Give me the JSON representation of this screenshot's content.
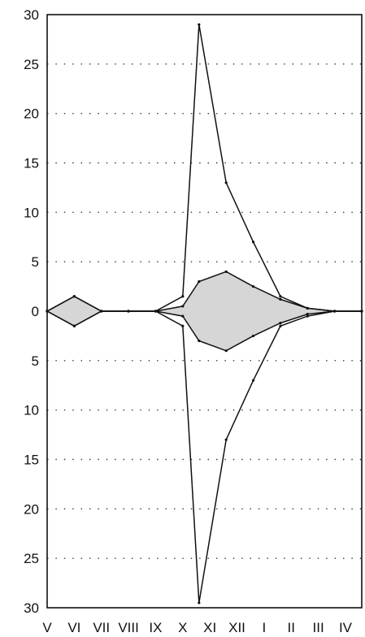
{
  "chart_data": {
    "type": "area",
    "title": "",
    "xlabel": "",
    "ylabel": "",
    "categories": [
      "V",
      "VI",
      "VII",
      "VIII",
      "IX",
      "X",
      "XI",
      "XII",
      "I",
      "II",
      "III",
      "IV"
    ],
    "ylim": [
      -30,
      30
    ],
    "y_ticks": [
      {
        "value": 30,
        "label": "30"
      },
      {
        "value": 25,
        "label": "25"
      },
      {
        "value": 20,
        "label": "20"
      },
      {
        "value": 15,
        "label": "15"
      },
      {
        "value": 10,
        "label": "10"
      },
      {
        "value": 5,
        "label": "5"
      },
      {
        "value": 0,
        "label": "0"
      },
      {
        "value": -5,
        "label": "5"
      },
      {
        "value": -10,
        "label": "10"
      },
      {
        "value": -15,
        "label": "15"
      },
      {
        "value": -20,
        "label": "20"
      },
      {
        "value": -25,
        "label": "25"
      },
      {
        "value": -30,
        "label": "30"
      }
    ],
    "grid": "horizontal-dotted",
    "x": [
      0,
      1,
      2,
      3,
      4,
      5,
      5.6,
      6.6,
      7.6,
      8.6,
      9.6,
      10.6,
      11.6
    ],
    "series": [
      {
        "role": "outer-upper",
        "values": [
          0,
          1.5,
          0,
          0,
          0,
          1.5,
          29,
          13,
          7,
          1.5,
          0.3,
          0,
          0
        ]
      },
      {
        "role": "inner-upper",
        "values": [
          0,
          1.5,
          0,
          0,
          0,
          0.5,
          3,
          4,
          2.5,
          1.2,
          0.3,
          0,
          0
        ]
      },
      {
        "role": "inner-lower",
        "values": [
          0,
          -1.5,
          0,
          0,
          0,
          -0.5,
          -3,
          -4,
          -2.5,
          -1.2,
          -0.3,
          0,
          0
        ]
      },
      {
        "role": "outer-lower",
        "values": [
          0,
          -1.5,
          0,
          0,
          0,
          -1.5,
          -29.5,
          -13,
          -7,
          -1.5,
          -0.5,
          0,
          0
        ]
      }
    ],
    "shaded_between": [
      "inner-upper",
      "inner-lower"
    ],
    "colors": {
      "line": "#111111",
      "fill": "#d6d6d6",
      "grid": "#333333"
    }
  }
}
